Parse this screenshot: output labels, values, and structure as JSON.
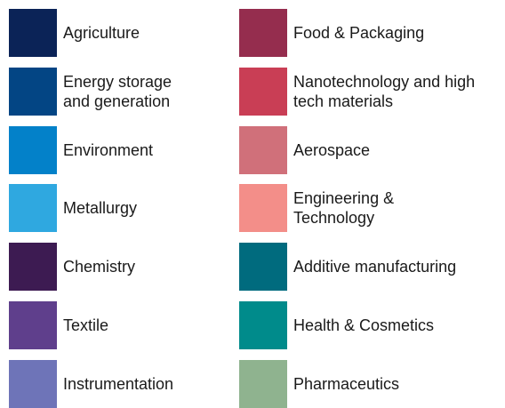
{
  "columns": [
    {
      "items": [
        {
          "label": "Agriculture",
          "color": "#0b2357"
        },
        {
          "label": "Energy storage\nand generation",
          "color": "#034584"
        },
        {
          "label": "Environment",
          "color": "#0381c9"
        },
        {
          "label": "Metallurgy",
          "color": "#2fa8e0"
        },
        {
          "label": "Chemistry",
          "color": "#3d1b52"
        },
        {
          "label": "Textile",
          "color": "#5f3f8c"
        },
        {
          "label": "Instrumentation",
          "color": "#6e74b8"
        }
      ]
    },
    {
      "items": [
        {
          "label": "Food & Packaging",
          "color": "#952d4e"
        },
        {
          "label": "Nanotechnology and high\ntech materials",
          "color": "#c93e55"
        },
        {
          "label": "Aerospace",
          "color": "#d0707a"
        },
        {
          "label": "Engineering &\nTechnology",
          "color": "#f38e89"
        },
        {
          "label": "Additive manufacturing",
          "color": "#006b7e"
        },
        {
          "label": "Health & Cosmetics",
          "color": "#008b8b"
        },
        {
          "label": "Pharmaceutics",
          "color": "#8fb38f"
        }
      ]
    }
  ]
}
